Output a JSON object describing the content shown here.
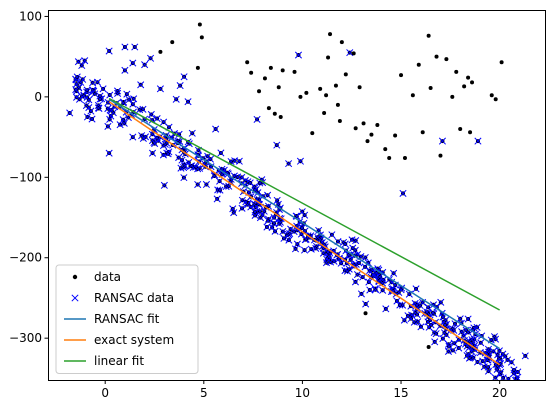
{
  "chart_data": {
    "type": "scatter",
    "title": "",
    "xlabel": "",
    "ylabel": "",
    "xlim": [
      -2.9,
      22.3
    ],
    "ylim": [
      -352,
      108
    ],
    "xticks": [
      0,
      5,
      10,
      15,
      20
    ],
    "yticks": [
      -300,
      -200,
      -100,
      0,
      100
    ],
    "grid": false,
    "legend_position": "lower-left",
    "legend": [
      {
        "label": "data",
        "kind": "dot",
        "color": "#000000"
      },
      {
        "label": "RANSAC data",
        "kind": "x",
        "color": "#0000ff"
      },
      {
        "label": "RANSAC fit",
        "kind": "line",
        "color": "#1f77b4"
      },
      {
        "label": "exact system",
        "kind": "line",
        "color": "#ff7f0e"
      },
      {
        "label": "linear fit",
        "kind": "line",
        "color": "#2ca02c"
      }
    ],
    "lines": [
      {
        "name": "RANSAC fit",
        "color": "#1f77b4",
        "x": [
          0.2,
          20.0
        ],
        "y": [
          -3,
          -313
        ]
      },
      {
        "name": "exact system",
        "color": "#ff7f0e",
        "x": [
          0.2,
          20.0
        ],
        "y": [
          -6,
          -333
        ]
      },
      {
        "name": "linear fit",
        "color": "#2ca02c",
        "x": [
          0.2,
          20.0
        ],
        "y": [
          -2,
          -265
        ]
      }
    ],
    "inlier_band": {
      "slope": -16.5,
      "intercept": -3,
      "x_range": [
        -1.8,
        21.3
      ],
      "spread": 18,
      "count": 480
    },
    "inliers_extra": [
      [
        -1.8,
        -20
      ],
      [
        -1.3,
        -3
      ],
      [
        -0.9,
        -25
      ],
      [
        0.2,
        57
      ],
      [
        0.2,
        -70
      ],
      [
        1.0,
        62
      ],
      [
        1.5,
        62
      ],
      [
        1.0,
        33
      ],
      [
        1.4,
        42
      ],
      [
        2.0,
        40
      ],
      [
        1.8,
        15
      ],
      [
        2.3,
        48
      ],
      [
        2.8,
        10
      ],
      [
        3.8,
        14
      ],
      [
        4.0,
        25
      ],
      [
        4.2,
        -6
      ],
      [
        3.6,
        -3
      ],
      [
        5.6,
        -40
      ],
      [
        6.8,
        -80
      ],
      [
        7.7,
        -28
      ],
      [
        8.7,
        -60
      ],
      [
        9.3,
        -83
      ],
      [
        9.9,
        -80
      ],
      [
        9.8,
        52
      ],
      [
        12.4,
        55
      ],
      [
        15.1,
        -120
      ],
      [
        17.1,
        -55
      ],
      [
        18.9,
        -55
      ],
      [
        21.3,
        -322
      ],
      [
        20.4,
        -327
      ],
      [
        1.4,
        -50
      ],
      [
        2.4,
        -70
      ],
      [
        3.0,
        -110
      ]
    ],
    "outliers": [
      [
        2.8,
        56
      ],
      [
        3.4,
        68
      ],
      [
        4.7,
        36
      ],
      [
        4.8,
        90
      ],
      [
        4.9,
        74
      ],
      [
        7.2,
        43
      ],
      [
        7.4,
        30
      ],
      [
        7.8,
        7
      ],
      [
        8.1,
        23
      ],
      [
        8.3,
        -14
      ],
      [
        8.6,
        -21
      ],
      [
        8.9,
        -25
      ],
      [
        8.4,
        36
      ],
      [
        9.0,
        33
      ],
      [
        8.8,
        12
      ],
      [
        9.6,
        31
      ],
      [
        9.9,
        0
      ],
      [
        10.2,
        5
      ],
      [
        10.9,
        10
      ],
      [
        11.1,
        -20
      ],
      [
        11.2,
        2
      ],
      [
        11.4,
        78
      ],
      [
        11.3,
        49
      ],
      [
        11.7,
        14
      ],
      [
        11.9,
        -30
      ],
      [
        11.8,
        -10
      ],
      [
        12.0,
        68
      ],
      [
        12.2,
        28
      ],
      [
        12.6,
        54
      ],
      [
        12.9,
        12
      ],
      [
        13.1,
        -33
      ],
      [
        13.3,
        -55
      ],
      [
        13.5,
        -47
      ],
      [
        13.8,
        -35
      ],
      [
        14.2,
        -65
      ],
      [
        14.4,
        -76
      ],
      [
        14.7,
        -48
      ],
      [
        15.0,
        27
      ],
      [
        15.2,
        -76
      ],
      [
        15.6,
        2
      ],
      [
        15.9,
        40
      ],
      [
        16.1,
        -44
      ],
      [
        16.4,
        76
      ],
      [
        16.5,
        11
      ],
      [
        16.8,
        50
      ],
      [
        17.3,
        47
      ],
      [
        17.6,
        0
      ],
      [
        17.8,
        31
      ],
      [
        18.0,
        -40
      ],
      [
        18.2,
        13
      ],
      [
        18.4,
        24
      ],
      [
        18.5,
        -44
      ],
      [
        18.6,
        18
      ],
      [
        19.6,
        2
      ],
      [
        19.8,
        -3
      ],
      [
        20.1,
        43
      ],
      [
        10.5,
        -45
      ],
      [
        12.7,
        -39
      ],
      [
        13.2,
        -269
      ],
      [
        16.4,
        -311
      ],
      [
        17.0,
        -73
      ]
    ],
    "colors": {
      "data": "#000000",
      "ransac_data": "#0000ff",
      "axes": "#000000",
      "background": "#ffffff"
    }
  }
}
